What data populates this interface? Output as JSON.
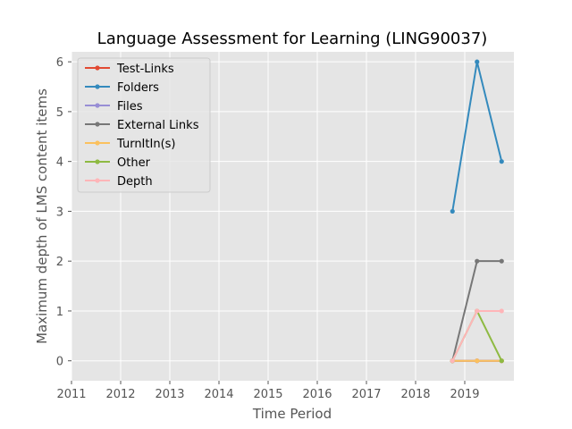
{
  "chart_data": {
    "type": "line",
    "title": "Language Assessment for Learning (LING90037)",
    "xlabel": "Time Period",
    "ylabel": "Maximum depth of LMS content items",
    "xlim": [
      2011.0,
      2020.0
    ],
    "ylim": [
      -0.4,
      6.2
    ],
    "xticks": [
      "2011",
      "2012",
      "2013",
      "2014",
      "2015",
      "2016",
      "2017",
      "2018",
      "2019"
    ],
    "yticks": [
      "0",
      "1",
      "2",
      "3",
      "4",
      "5",
      "6"
    ],
    "grid": true,
    "legend_position": "top-left",
    "background_color": "#e5e5e5",
    "x": [
      2018.75,
      2019.25,
      2019.75
    ],
    "series": [
      {
        "name": "Test-Links",
        "color": "#E24A33",
        "values": [
          0,
          0,
          0
        ]
      },
      {
        "name": "Folders",
        "color": "#348ABD",
        "values": [
          3,
          6,
          4
        ]
      },
      {
        "name": "Files",
        "color": "#988ED5",
        "values": [
          0,
          0,
          0
        ]
      },
      {
        "name": "External Links",
        "color": "#777777",
        "values": [
          0,
          2,
          2
        ]
      },
      {
        "name": "TurnItIn(s)",
        "color": "#FBC15E",
        "values": [
          0,
          0,
          0
        ]
      },
      {
        "name": "Other",
        "color": "#8EBA42",
        "values": [
          0,
          1,
          0
        ]
      },
      {
        "name": "Depth",
        "color": "#FFB5B8",
        "values": [
          0,
          1,
          1
        ]
      }
    ]
  }
}
